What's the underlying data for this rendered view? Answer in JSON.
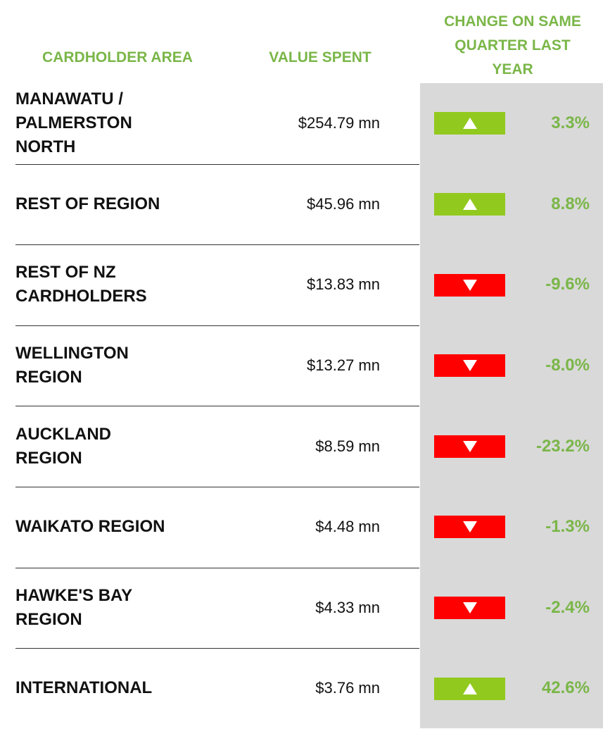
{
  "header": {
    "area": "CARDHOLDER AREA",
    "value": "VALUE SPENT",
    "change": "CHANGE ON SAME\nQUARTER LAST\nYEAR"
  },
  "table": {
    "rows": [
      {
        "area": "MANAWATU /\nPALMERSTON\nNORTH",
        "value": "$254.79 mn",
        "change": "3.3%",
        "trend": "up"
      },
      {
        "area": "REST OF REGION",
        "value": "$45.96 mn",
        "change": "8.8%",
        "trend": "up"
      },
      {
        "area": "REST OF NZ\nCARDHOLDERS",
        "value": "$13.83 mn",
        "change": "-9.6%",
        "trend": "down"
      },
      {
        "area": "WELLINGTON\nREGION",
        "value": "$13.27 mn",
        "change": "-8.0%",
        "trend": "down"
      },
      {
        "area": "AUCKLAND\nREGION",
        "value": "$8.59 mn",
        "change": "-23.2%",
        "trend": "down"
      },
      {
        "area": "WAIKATO REGION",
        "value": "$4.48 mn",
        "change": "-1.3%",
        "trend": "down"
      },
      {
        "area": "HAWKE'S BAY\nREGION",
        "value": "$4.33 mn",
        "change": "-2.4%",
        "trend": "down"
      },
      {
        "area": "INTERNATIONAL",
        "value": "$3.76 mn",
        "change": "42.6%",
        "trend": "up"
      }
    ]
  }
}
